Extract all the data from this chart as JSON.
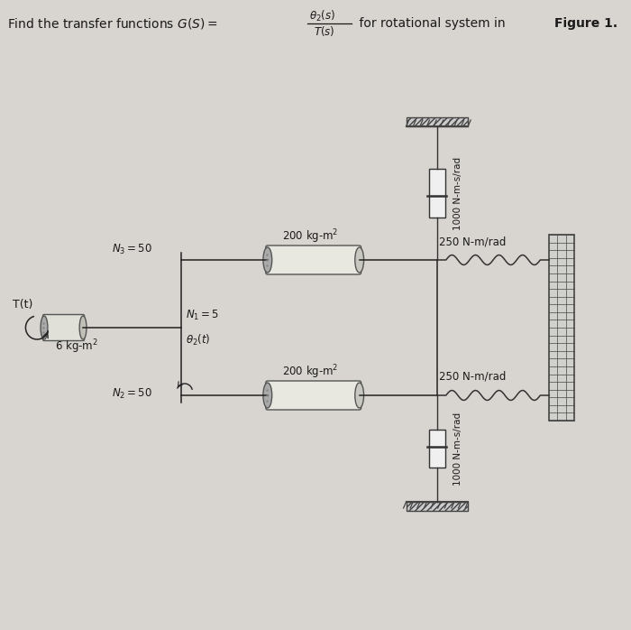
{
  "bg_color": "#d8d4cf",
  "fig_width": 7.0,
  "fig_height": 6.98,
  "text_color": "#1a1a1a",
  "title_main": "Find the transfer functions $G(S) = $",
  "title_frac_num": "$\\theta_2(s)$",
  "title_frac_den": "$T(s)$",
  "title_rest": " for rotational system in ",
  "title_bold": "Figure 1.",
  "label_Tt": "T(t)",
  "label_6kgm2": "6 kg-m$^2$",
  "label_N1": "$N_1 = 5$",
  "label_theta2": "$\\theta_2(t)$",
  "label_N2": "$N_2 = 50$",
  "label_N3": "$N_3 = 50$",
  "label_200top": "200 kg-m$^2$",
  "label_200bot": "200 kg-m$^2$",
  "label_250top": "250 N-m/rad",
  "label_250bot": "250 N-m/rad",
  "label_1000top": "1000 N-m-s/rad",
  "label_1000bot": "1000 N-m-s/rad",
  "line_color": "#222222",
  "wall_color": "#444444",
  "cyl_face": "#c8c8c0",
  "cyl_edge": "#555555",
  "spring_color": "#333333",
  "damp_color": "#333333"
}
